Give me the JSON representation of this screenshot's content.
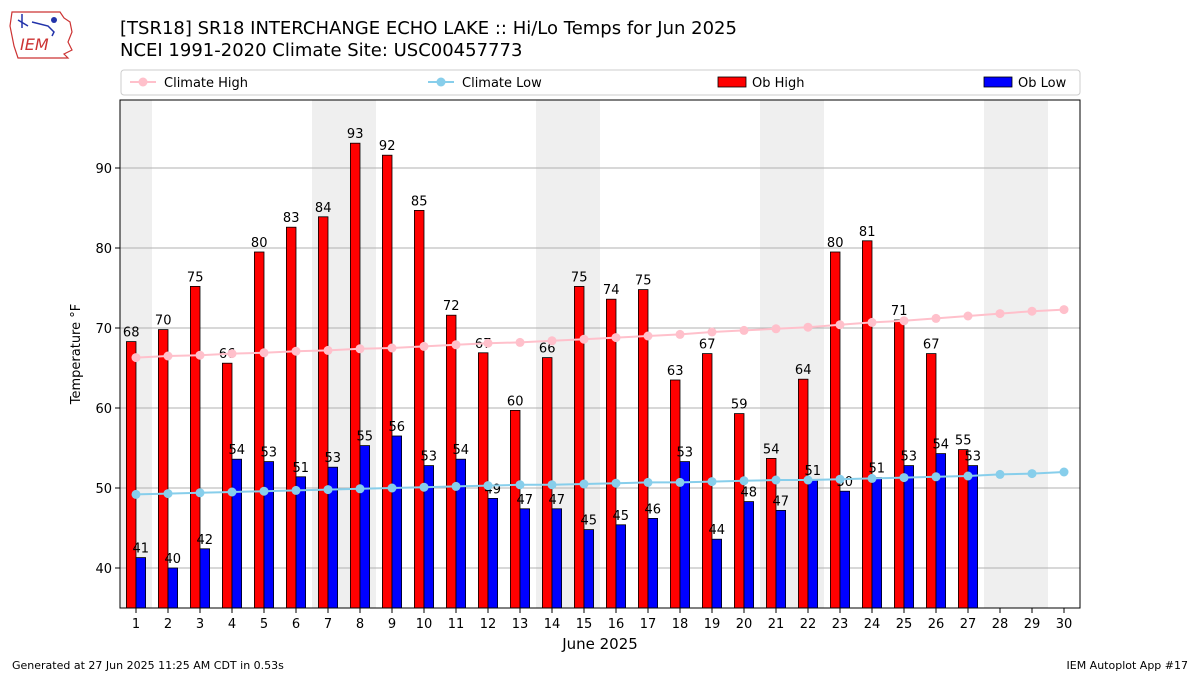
{
  "header": {
    "title_line1": "[TSR18] SR18 INTERCHANGE ECHO LAKE :: Hi/Lo Temps for Jun 2025",
    "title_line2": "NCEI 1991-2020 Climate Site: USC00457773"
  },
  "logo": {
    "text": "IEM"
  },
  "footer": {
    "left": "Generated at 27 Jun 2025 11:25 AM CDT in 0.53s",
    "right": "IEM Autoplot App #17"
  },
  "chart_data": {
    "type": "bar",
    "xlabel": "June 2025",
    "ylabel": "Temperature °F",
    "ylim": [
      35,
      98.5
    ],
    "yticks": [
      40,
      50,
      60,
      70,
      80,
      90
    ],
    "grid": true,
    "legend_position": "top",
    "weekend_shading_days": [
      1,
      7,
      8,
      14,
      15,
      21,
      22,
      28,
      29
    ],
    "x": [
      1,
      2,
      3,
      4,
      5,
      6,
      7,
      8,
      9,
      10,
      11,
      12,
      13,
      14,
      15,
      16,
      17,
      18,
      19,
      20,
      21,
      22,
      23,
      24,
      25,
      26,
      27,
      28,
      29,
      30
    ],
    "bar_series": [
      {
        "name": "Ob High",
        "color": "#ff0000",
        "values": [
          68.3,
          69.8,
          75.2,
          65.6,
          79.5,
          82.6,
          83.9,
          93.1,
          91.6,
          84.7,
          71.6,
          66.9,
          59.7,
          66.3,
          75.2,
          73.6,
          74.8,
          63.5,
          66.8,
          59.3,
          53.7,
          63.6,
          79.5,
          80.9,
          71.0,
          66.8,
          54.8
        ],
        "labels": [
          "68",
          "70",
          "75",
          "66",
          "80",
          "83",
          "84",
          "93",
          "92",
          "85",
          "72",
          "67",
          "60",
          "66",
          "75",
          "74",
          "75",
          "63",
          "67",
          "59",
          "54",
          "64",
          "80",
          "81",
          "71",
          "67",
          "55"
        ]
      },
      {
        "name": "Ob Low",
        "color": "#0000ff",
        "values": [
          41.3,
          40.0,
          42.4,
          53.6,
          53.3,
          51.4,
          52.6,
          55.3,
          56.5,
          52.8,
          53.6,
          48.7,
          47.4,
          47.4,
          44.8,
          45.4,
          46.2,
          53.3,
          43.6,
          48.3,
          47.2,
          51.0,
          49.6,
          51.3,
          52.8,
          54.3,
          52.8
        ],
        "labels": [
          "41",
          "40",
          "42",
          "54",
          "53",
          "51",
          "53",
          "55",
          "56",
          "53",
          "54",
          "49",
          "47",
          "47",
          "45",
          "45",
          "46",
          "53",
          "44",
          "48",
          "47",
          "51",
          "50",
          "51",
          "53",
          "54",
          "53"
        ]
      }
    ],
    "line_series": [
      {
        "name": "Climate High",
        "color": "#ffc0cb",
        "values": [
          66.3,
          66.5,
          66.6,
          66.8,
          66.9,
          67.1,
          67.2,
          67.4,
          67.5,
          67.7,
          67.9,
          68.1,
          68.2,
          68.4,
          68.6,
          68.8,
          69.0,
          69.2,
          69.5,
          69.7,
          69.9,
          70.1,
          70.4,
          70.7,
          70.9,
          71.2,
          71.5,
          71.8,
          72.1,
          72.3
        ]
      },
      {
        "name": "Climate Low",
        "color": "#87ceeb",
        "values": [
          49.2,
          49.3,
          49.4,
          49.5,
          49.6,
          49.7,
          49.8,
          49.9,
          50.0,
          50.1,
          50.2,
          50.3,
          50.4,
          50.4,
          50.5,
          50.6,
          50.7,
          50.7,
          50.8,
          50.9,
          51.0,
          51.0,
          51.1,
          51.2,
          51.3,
          51.4,
          51.5,
          51.7,
          51.8,
          52.0
        ]
      }
    ]
  }
}
